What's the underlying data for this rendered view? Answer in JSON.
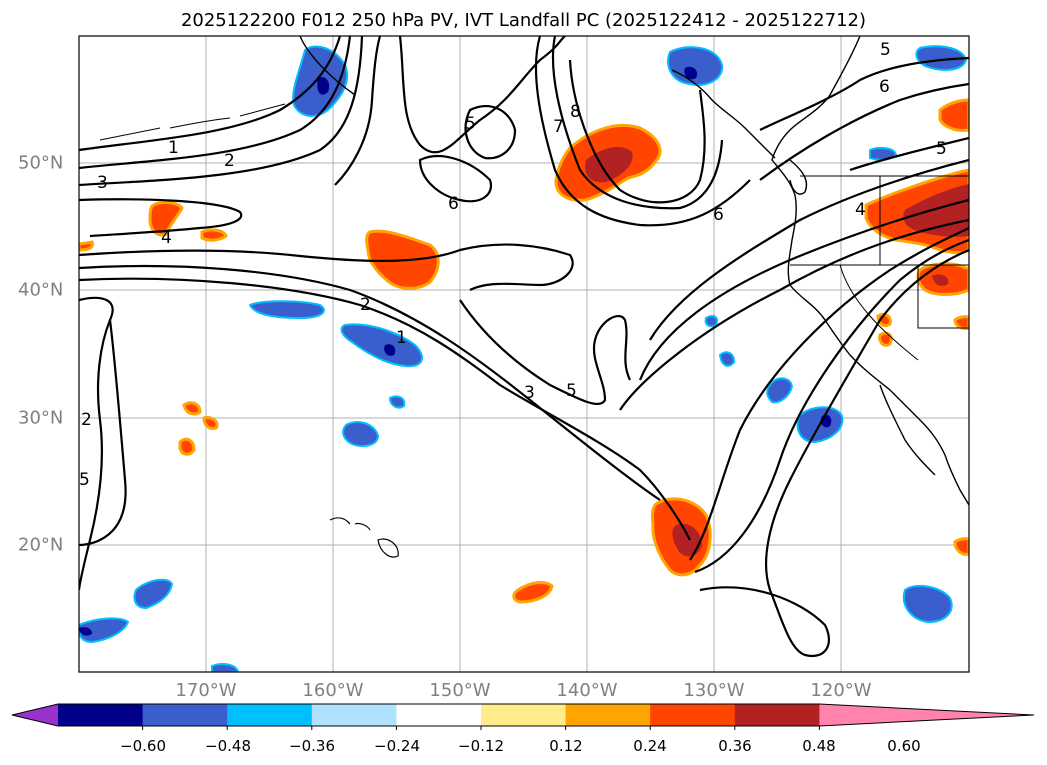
{
  "title": "2025122200 F012 250 hPa PV, IVT Landfall PC (2025122412 - 2025122712)",
  "longitude_labels": [
    "170°W",
    "160°W",
    "150°W",
    "140°W",
    "130°W",
    "120°W"
  ],
  "latitude_labels": [
    "50°N",
    "40°N",
    "30°N",
    "20°N"
  ],
  "colorbar": {
    "tick_labels": [
      "−0.60",
      "−0.48",
      "−0.36",
      "−0.24",
      "−0.12",
      "0.12",
      "0.24",
      "0.36",
      "0.48",
      "0.60"
    ],
    "colors": [
      "#9932cc",
      "#00008b",
      "#3a5fcd",
      "#00bfff",
      "#b0e2ff",
      "#ffffff",
      "#ffec8b",
      "#ffa500",
      "#ff4500",
      "#b22222",
      "#ff83aa"
    ]
  },
  "contour_labels": [
    "1",
    "2",
    "3",
    "4",
    "5",
    "6",
    "7",
    "8",
    "2",
    "3",
    "5",
    "6",
    "5",
    "6",
    "5",
    "4",
    "1",
    "2",
    "5"
  ],
  "shading_colors": {
    "land": "#ffffff",
    "coast": "#000000",
    "grid": "#b0b0b0"
  }
}
